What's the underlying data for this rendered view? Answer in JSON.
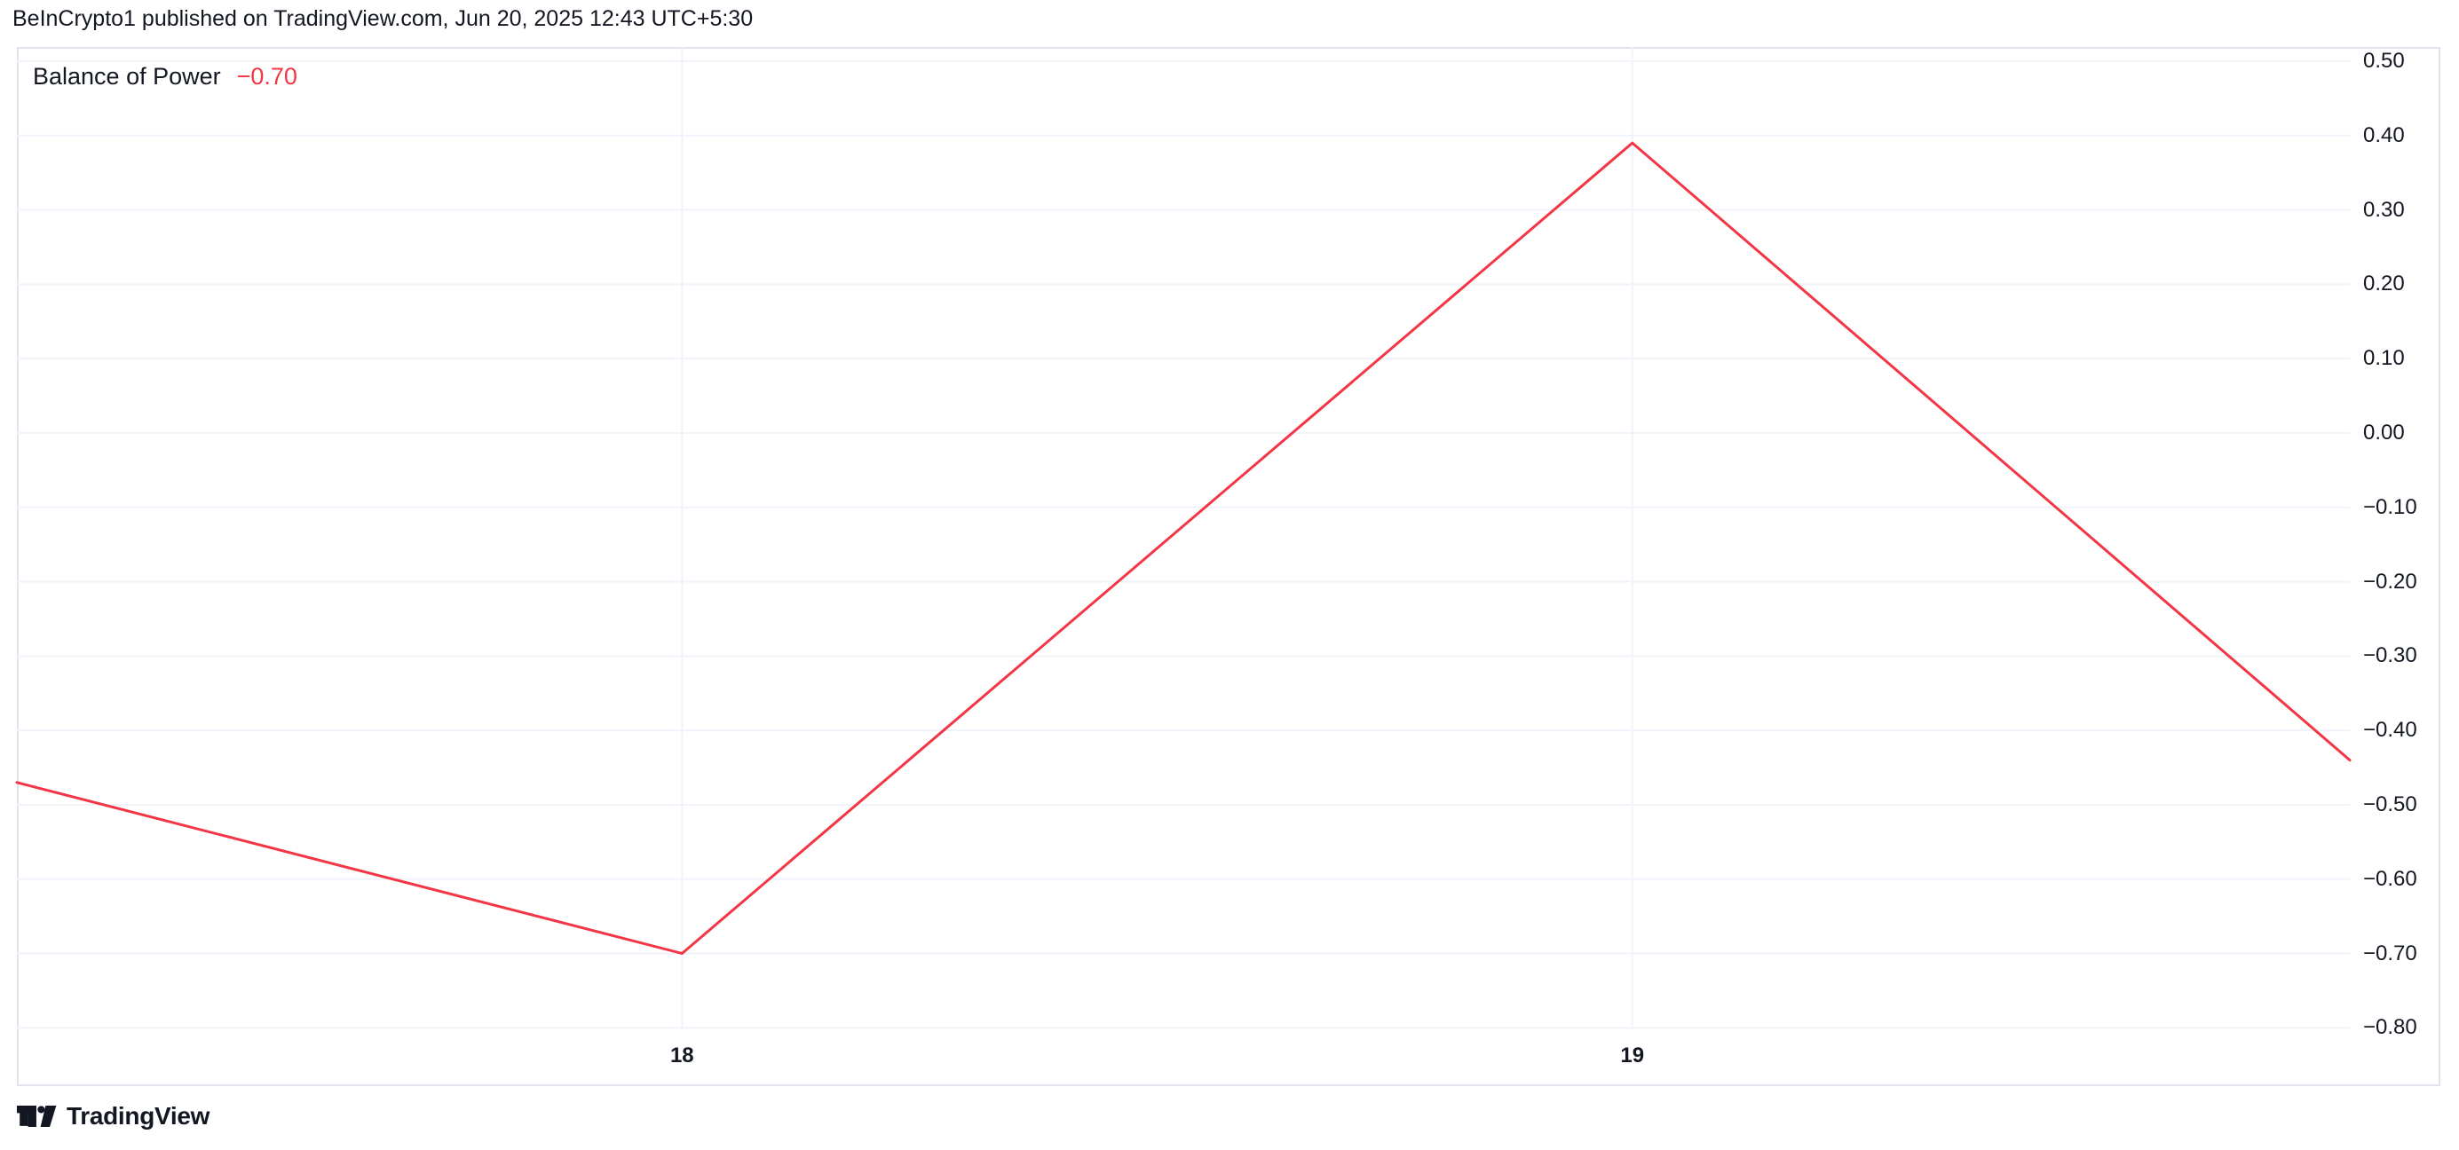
{
  "header": {
    "text": "BeInCrypto1 published on TradingView.com, Jun 20, 2025 12:43 UTC+5:30"
  },
  "legend": {
    "title": "Balance of Power",
    "value": "−0.70"
  },
  "footer": {
    "brand": "TradingView"
  },
  "colors": {
    "line": "#F23645",
    "value_text": "#F23645",
    "grid": "#F0F3FA",
    "frame": "#E1E4EC",
    "text": "#131722",
    "background": "#FFFFFF"
  },
  "chart_data": {
    "type": "line",
    "title": "Balance of Power",
    "current_value": "−0.70",
    "grid": true,
    "legend_position": "top-left",
    "x_axis": "date (June 2025, daily bars)",
    "xlim": [
      17.3,
      19.755
    ],
    "ylim": [
      -0.802,
      0.519
    ],
    "x_ticks": [
      {
        "label": "18",
        "day": 18
      },
      {
        "label": "19",
        "day": 19
      }
    ],
    "y_ticks": [
      {
        "label": "0.50",
        "value": 0.5
      },
      {
        "label": "0.40",
        "value": 0.4
      },
      {
        "label": "0.30",
        "value": 0.3
      },
      {
        "label": "0.20",
        "value": 0.2
      },
      {
        "label": "0.10",
        "value": 0.1
      },
      {
        "label": "0.00",
        "value": 0.0
      },
      {
        "label": "−0.10",
        "value": -0.1
      },
      {
        "label": "−0.20",
        "value": -0.2
      },
      {
        "label": "−0.30",
        "value": -0.3
      },
      {
        "label": "−0.40",
        "value": -0.4
      },
      {
        "label": "−0.50",
        "value": -0.5
      },
      {
        "label": "−0.60",
        "value": -0.6
      },
      {
        "label": "−0.70",
        "value": -0.7
      },
      {
        "label": "−0.80",
        "value": -0.8
      }
    ],
    "series": [
      {
        "name": "Balance of Power",
        "color": "#F23645",
        "points": [
          {
            "day": 17.3,
            "value": -0.47
          },
          {
            "day": 18.0,
            "value": -0.7
          },
          {
            "day": 19.0,
            "value": 0.39
          },
          {
            "day": 19.755,
            "value": -0.44
          }
        ]
      }
    ]
  }
}
